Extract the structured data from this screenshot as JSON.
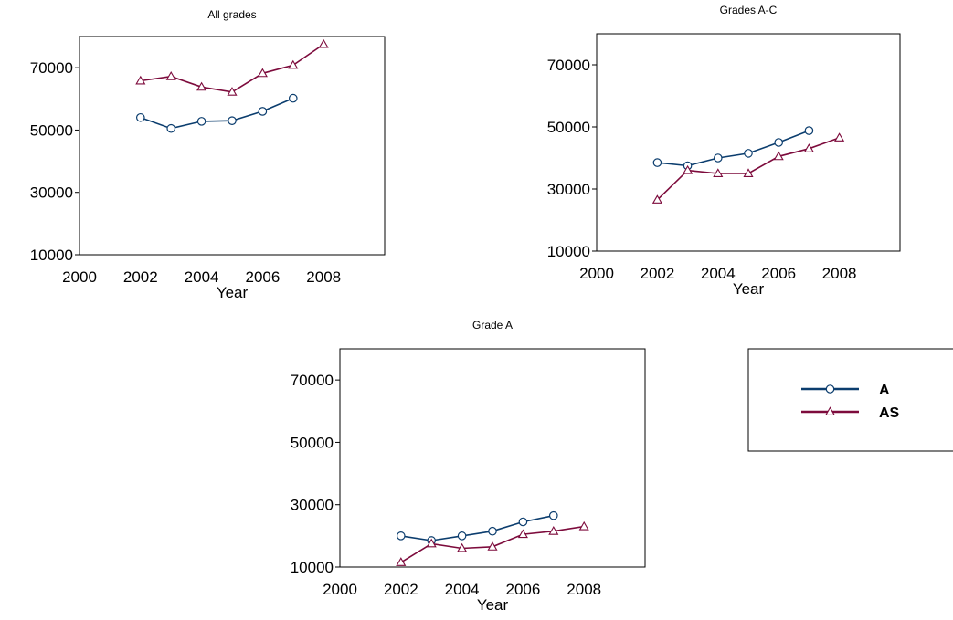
{
  "colors": {
    "series_a": "#0b3d6e",
    "series_as": "#7d0b3c",
    "axis": "#000000",
    "background": "#ffffff"
  },
  "legend": {
    "items": [
      {
        "label": "A",
        "marker": "circle",
        "color": "#0b3d6e"
      },
      {
        "label": "AS",
        "marker": "triangle",
        "color": "#7d0b3c"
      }
    ]
  },
  "chart_data": [
    {
      "type": "line",
      "title": "All grades",
      "xlabel": "Year",
      "ylabel": "",
      "xlim": [
        2000,
        2010
      ],
      "ylim": [
        10000,
        80000
      ],
      "xticks": [
        2000,
        2002,
        2004,
        2006,
        2008
      ],
      "yticks": [
        10000,
        30000,
        50000,
        70000
      ],
      "grid": false,
      "series": [
        {
          "name": "A",
          "marker": "circle",
          "x": [
            2002,
            2003,
            2004,
            2005,
            2006,
            2007
          ],
          "y": [
            54000,
            50500,
            52800,
            53000,
            56000,
            60200
          ]
        },
        {
          "name": "AS",
          "marker": "triangle",
          "x": [
            2002,
            2003,
            2004,
            2005,
            2006,
            2007,
            2008
          ],
          "y": [
            65800,
            67200,
            63800,
            62200,
            68200,
            70800,
            77500
          ]
        }
      ]
    },
    {
      "type": "line",
      "title": "Grades A-C",
      "xlabel": "Year",
      "ylabel": "",
      "xlim": [
        2000,
        2010
      ],
      "ylim": [
        10000,
        80000
      ],
      "xticks": [
        2000,
        2002,
        2004,
        2006,
        2008
      ],
      "yticks": [
        10000,
        30000,
        50000,
        70000
      ],
      "grid": false,
      "series": [
        {
          "name": "A",
          "marker": "circle",
          "x": [
            2002,
            2003,
            2004,
            2005,
            2006,
            2007
          ],
          "y": [
            38500,
            37500,
            40000,
            41500,
            45000,
            48800
          ]
        },
        {
          "name": "AS",
          "marker": "triangle",
          "x": [
            2002,
            2003,
            2004,
            2005,
            2006,
            2007,
            2008
          ],
          "y": [
            26500,
            36000,
            35000,
            35000,
            40500,
            43000,
            46500
          ]
        }
      ]
    },
    {
      "type": "line",
      "title": "Grade A",
      "xlabel": "Year",
      "ylabel": "",
      "xlim": [
        2000,
        2010
      ],
      "ylim": [
        10000,
        80000
      ],
      "xticks": [
        2000,
        2002,
        2004,
        2006,
        2008
      ],
      "yticks": [
        10000,
        30000,
        50000,
        70000
      ],
      "grid": false,
      "series": [
        {
          "name": "A",
          "marker": "circle",
          "x": [
            2002,
            2003,
            2004,
            2005,
            2006,
            2007
          ],
          "y": [
            20000,
            18500,
            20000,
            21500,
            24500,
            26500
          ]
        },
        {
          "name": "AS",
          "marker": "triangle",
          "x": [
            2002,
            2003,
            2004,
            2005,
            2006,
            2007,
            2008
          ],
          "y": [
            11500,
            17500,
            16000,
            16500,
            20500,
            21500,
            23000
          ]
        }
      ]
    }
  ]
}
